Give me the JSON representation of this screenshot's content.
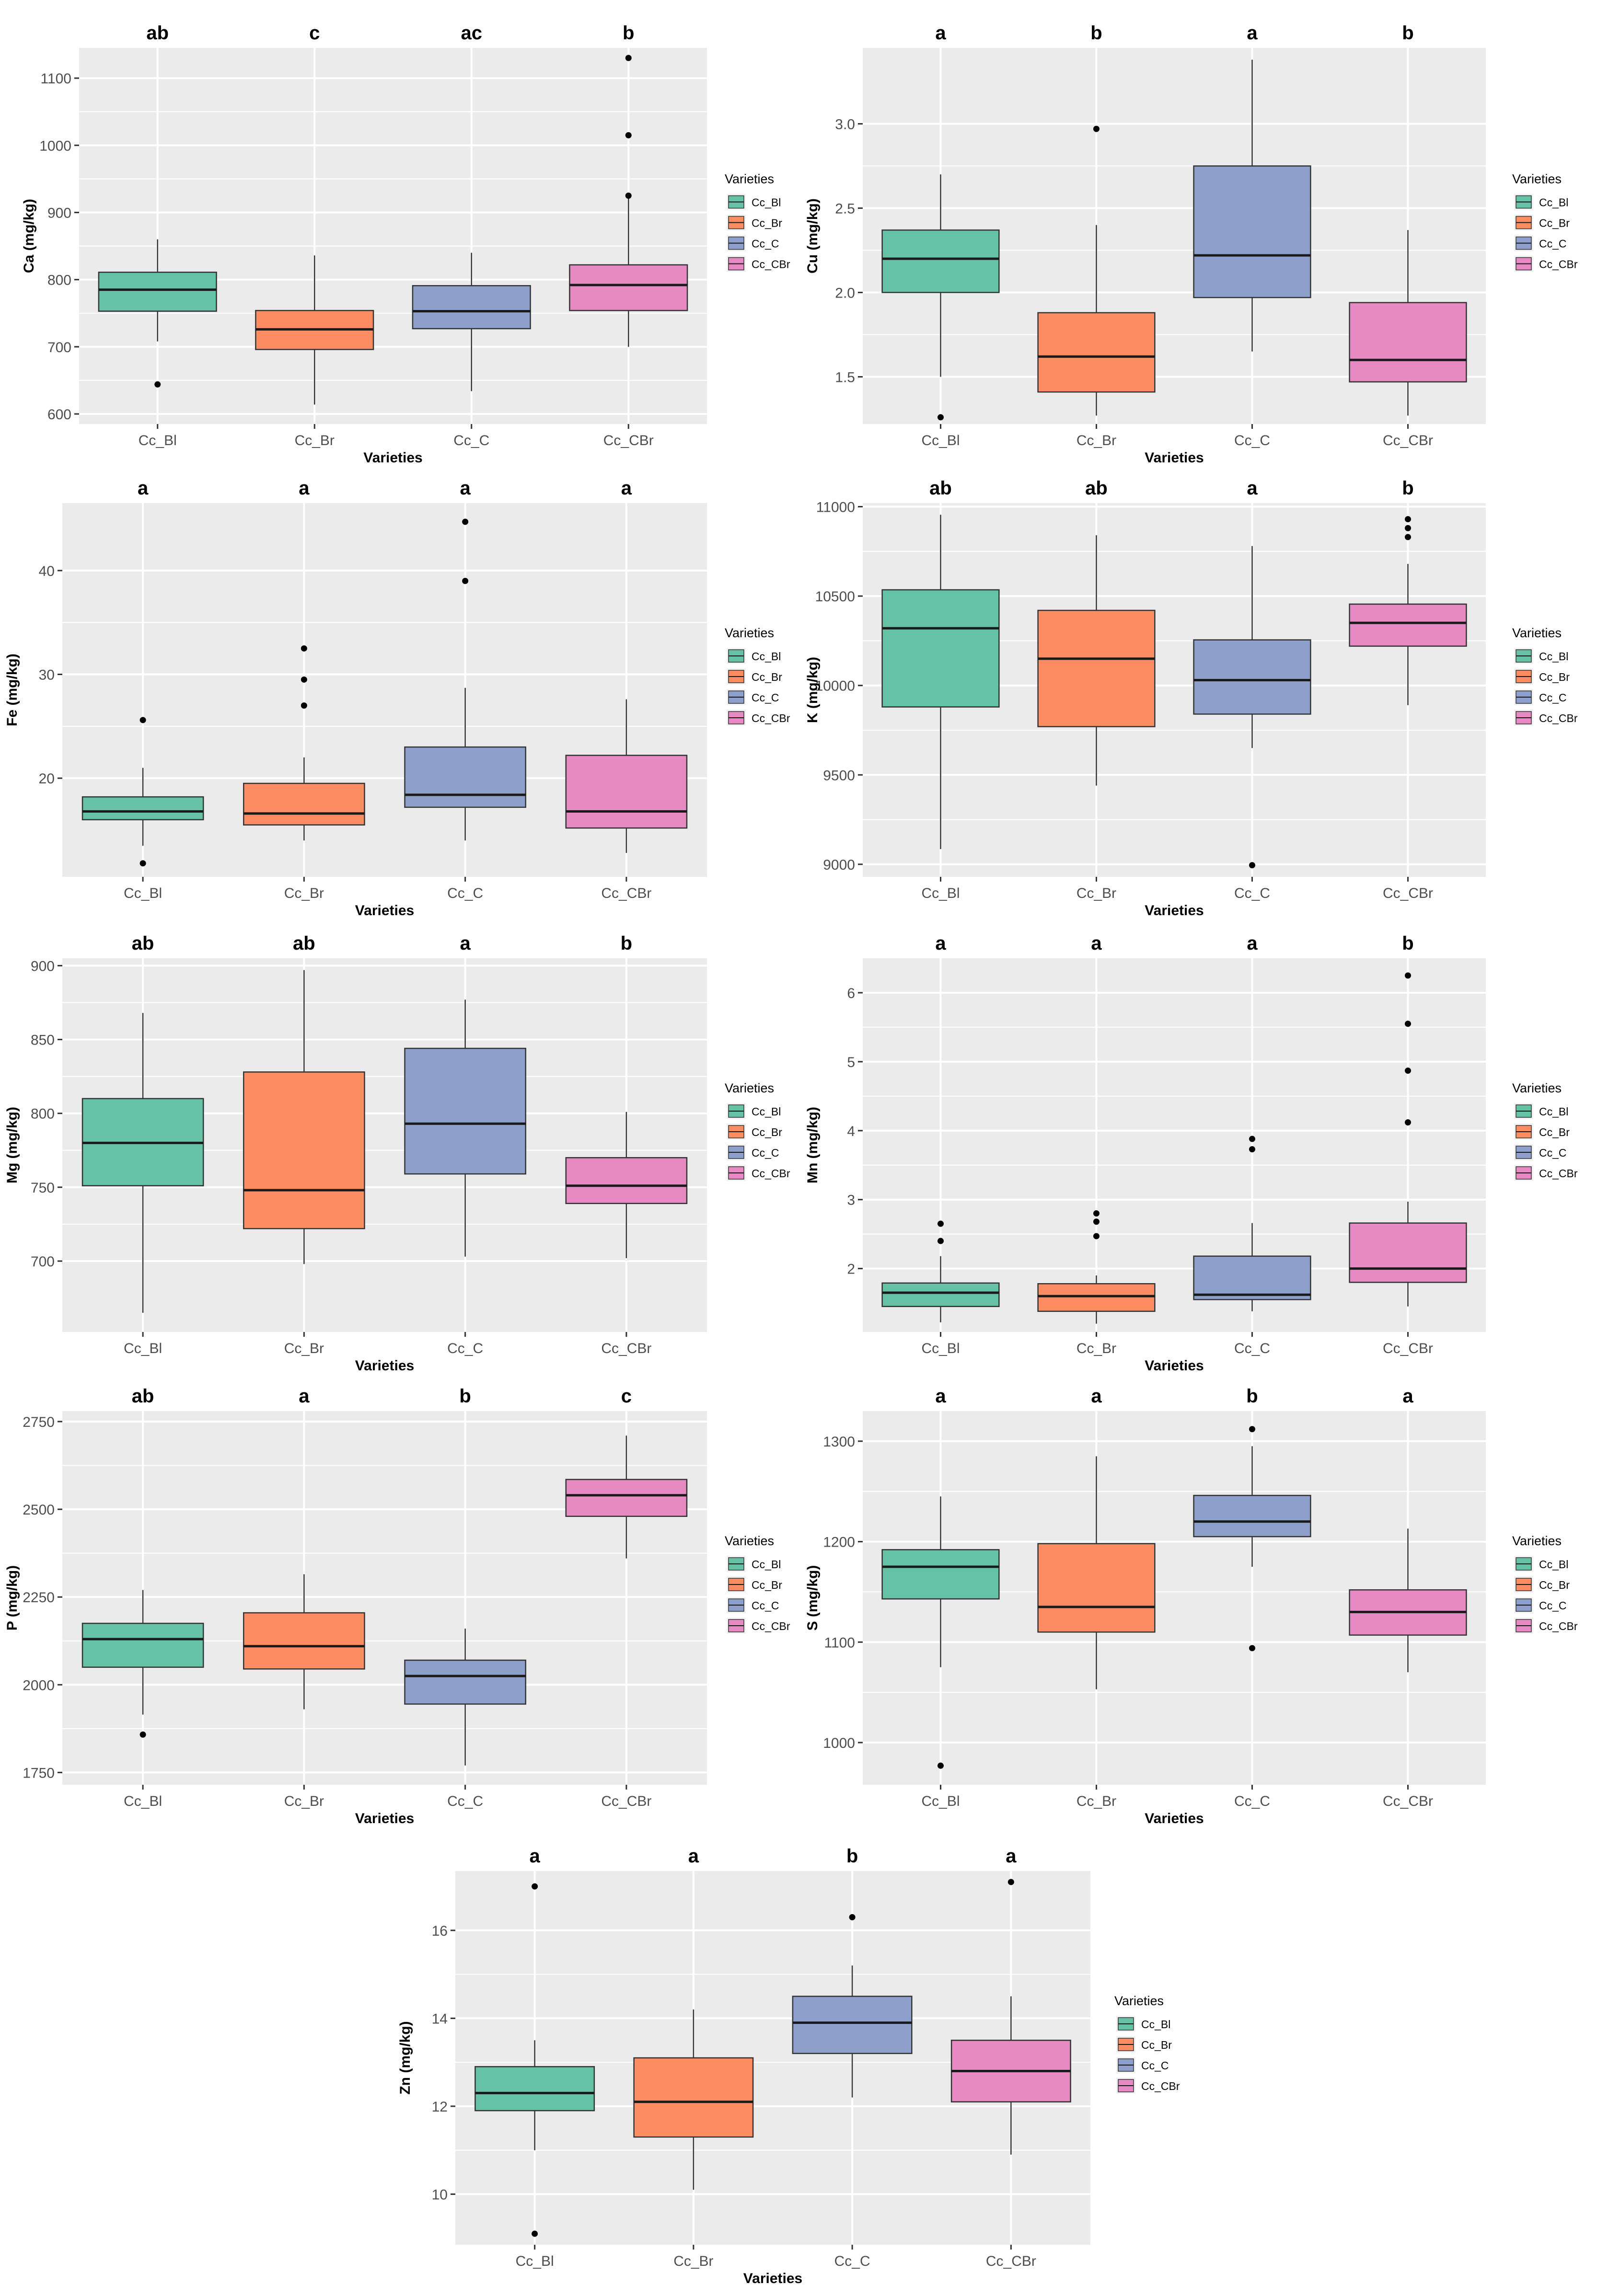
{
  "categories": [
    "Cc_Bl",
    "Cc_Br",
    "Cc_C",
    "Cc_CBr"
  ],
  "colors": [
    "#66c2a5",
    "#fc8d62",
    "#8da0cb",
    "#e78ac3"
  ],
  "legend_title": "Varieties",
  "xlabel": "Varieties",
  "chart_data": [
    {
      "type": "boxplot",
      "title": "Ca",
      "ylabel": "Ca (mg/kg)",
      "ylim": [
        585,
        1145
      ],
      "yticks": [
        600,
        700,
        800,
        900,
        1000,
        1100
      ],
      "letters": [
        "ab",
        "c",
        "ac",
        "b"
      ],
      "series": [
        {
          "name": "Cc_Bl",
          "lower": 708,
          "q1": 753,
          "median": 785,
          "q3": 811,
          "upper": 860,
          "outliers": [
            644
          ]
        },
        {
          "name": "Cc_Br",
          "lower": 614,
          "q1": 696,
          "median": 726,
          "q3": 754,
          "upper": 836,
          "outliers": []
        },
        {
          "name": "Cc_C",
          "lower": 634,
          "q1": 727,
          "median": 753,
          "q3": 791,
          "upper": 840,
          "outliers": []
        },
        {
          "name": "Cc_CBr",
          "lower": 700,
          "q1": 754,
          "median": 792,
          "q3": 822,
          "upper": 922,
          "outliers": [
            925,
            1015,
            1130
          ]
        }
      ]
    },
    {
      "type": "boxplot",
      "title": "Cu",
      "ylabel": "Cu (mg/kg)",
      "ylim": [
        1.22,
        3.45
      ],
      "yticks": [
        1.5,
        2.0,
        2.5,
        3.0
      ],
      "letters": [
        "a",
        "b",
        "a",
        "b"
      ],
      "series": [
        {
          "name": "Cc_Bl",
          "lower": 1.5,
          "q1": 2.0,
          "median": 2.2,
          "q3": 2.37,
          "upper": 2.7,
          "outliers": [
            1.26
          ]
        },
        {
          "name": "Cc_Br",
          "lower": 1.27,
          "q1": 1.41,
          "median": 1.62,
          "q3": 1.88,
          "upper": 2.4,
          "outliers": [
            2.97
          ]
        },
        {
          "name": "Cc_C",
          "lower": 1.65,
          "q1": 1.97,
          "median": 2.22,
          "q3": 2.75,
          "upper": 3.38,
          "outliers": []
        },
        {
          "name": "Cc_CBr",
          "lower": 1.27,
          "q1": 1.47,
          "median": 1.6,
          "q3": 1.94,
          "upper": 2.37,
          "outliers": []
        }
      ]
    },
    {
      "type": "boxplot",
      "title": "Fe",
      "ylabel": "Fe (mg/kg)",
      "ylim": [
        10.5,
        46.5
      ],
      "yticks": [
        20,
        30,
        40
      ],
      "letters": [
        "a",
        "a",
        "a",
        "a"
      ],
      "series": [
        {
          "name": "Cc_Bl",
          "lower": 13.5,
          "q1": 16.0,
          "median": 16.8,
          "q3": 18.2,
          "upper": 21.0,
          "outliers": [
            25.6,
            11.8
          ]
        },
        {
          "name": "Cc_Br",
          "lower": 14.0,
          "q1": 15.5,
          "median": 16.6,
          "q3": 19.5,
          "upper": 22.0,
          "outliers": [
            27.0,
            29.5,
            32.5
          ]
        },
        {
          "name": "Cc_C",
          "lower": 14.0,
          "q1": 17.2,
          "median": 18.4,
          "q3": 23.0,
          "upper": 28.7,
          "outliers": [
            39.0,
            44.7
          ]
        },
        {
          "name": "Cc_CBr",
          "lower": 12.8,
          "q1": 15.2,
          "median": 16.8,
          "q3": 22.2,
          "upper": 27.6,
          "outliers": []
        }
      ]
    },
    {
      "type": "boxplot",
      "title": "K",
      "ylabel": "K (mg/kg)",
      "ylim": [
        8930,
        11020
      ],
      "yticks": [
        9000,
        9500,
        10000,
        10500,
        11000
      ],
      "letters": [
        "ab",
        "ab",
        "a",
        "b"
      ],
      "series": [
        {
          "name": "Cc_Bl",
          "lower": 9085,
          "q1": 9880,
          "median": 10320,
          "q3": 10535,
          "upper": 10955,
          "outliers": []
        },
        {
          "name": "Cc_Br",
          "lower": 9440,
          "q1": 9770,
          "median": 10150,
          "q3": 10420,
          "upper": 10840,
          "outliers": []
        },
        {
          "name": "Cc_C",
          "lower": 9650,
          "q1": 9840,
          "median": 10030,
          "q3": 10255,
          "upper": 10780,
          "outliers": [
            8995
          ]
        },
        {
          "name": "Cc_CBr",
          "lower": 9890,
          "q1": 10220,
          "median": 10350,
          "q3": 10455,
          "upper": 10680,
          "outliers": [
            10830,
            10880,
            10930
          ]
        }
      ]
    },
    {
      "type": "boxplot",
      "title": "Mg",
      "ylabel": "Mg (mg/kg)",
      "ylim": [
        652,
        905
      ],
      "yticks": [
        700,
        750,
        800,
        850,
        900
      ],
      "letters": [
        "ab",
        "ab",
        "a",
        "b"
      ],
      "series": [
        {
          "name": "Cc_Bl",
          "lower": 665,
          "q1": 751,
          "median": 780,
          "q3": 810,
          "upper": 868,
          "outliers": []
        },
        {
          "name": "Cc_Br",
          "lower": 698,
          "q1": 722,
          "median": 748,
          "q3": 828,
          "upper": 897,
          "outliers": []
        },
        {
          "name": "Cc_C",
          "lower": 703,
          "q1": 759,
          "median": 793,
          "q3": 844,
          "upper": 877,
          "outliers": []
        },
        {
          "name": "Cc_CBr",
          "lower": 702,
          "q1": 739,
          "median": 751,
          "q3": 770,
          "upper": 801,
          "outliers": []
        }
      ]
    },
    {
      "type": "boxplot",
      "title": "Mn",
      "ylabel": "Mn (mg/kg)",
      "ylim": [
        1.08,
        6.5
      ],
      "yticks": [
        2,
        3,
        4,
        5,
        6
      ],
      "letters": [
        "a",
        "a",
        "a",
        "b"
      ],
      "series": [
        {
          "name": "Cc_Bl",
          "lower": 1.22,
          "q1": 1.45,
          "median": 1.65,
          "q3": 1.79,
          "upper": 2.18,
          "outliers": [
            2.4,
            2.65
          ]
        },
        {
          "name": "Cc_Br",
          "lower": 1.2,
          "q1": 1.38,
          "median": 1.6,
          "q3": 1.78,
          "upper": 1.9,
          "outliers": [
            2.47,
            2.68,
            2.8
          ]
        },
        {
          "name": "Cc_C",
          "lower": 1.38,
          "q1": 1.55,
          "median": 1.62,
          "q3": 2.18,
          "upper": 2.66,
          "outliers": [
            3.73,
            3.88
          ]
        },
        {
          "name": "Cc_CBr",
          "lower": 1.45,
          "q1": 1.8,
          "median": 2.0,
          "q3": 2.66,
          "upper": 2.97,
          "outliers": [
            4.12,
            4.87,
            5.55,
            6.25
          ]
        }
      ]
    },
    {
      "type": "boxplot",
      "title": "P",
      "ylabel": "P (mg/kg)",
      "ylim": [
        1715,
        2780
      ],
      "yticks": [
        1750,
        2000,
        2250,
        2500,
        2750
      ],
      "letters": [
        "ab",
        "a",
        "b",
        "c"
      ],
      "series": [
        {
          "name": "Cc_Bl",
          "lower": 1915,
          "q1": 2050,
          "median": 2130,
          "q3": 2175,
          "upper": 2270,
          "outliers": [
            1858
          ]
        },
        {
          "name": "Cc_Br",
          "lower": 1930,
          "q1": 2045,
          "median": 2110,
          "q3": 2205,
          "upper": 2315,
          "outliers": []
        },
        {
          "name": "Cc_C",
          "lower": 1770,
          "q1": 1945,
          "median": 2025,
          "q3": 2070,
          "upper": 2160,
          "outliers": []
        },
        {
          "name": "Cc_CBr",
          "lower": 2360,
          "q1": 2480,
          "median": 2540,
          "q3": 2585,
          "upper": 2710,
          "outliers": []
        }
      ]
    },
    {
      "type": "boxplot",
      "title": "S",
      "ylabel": "S (mg/kg)",
      "ylim": [
        958,
        1330
      ],
      "yticks": [
        1000,
        1100,
        1200,
        1300
      ],
      "letters": [
        "a",
        "a",
        "b",
        "a"
      ],
      "series": [
        {
          "name": "Cc_Bl",
          "lower": 1075,
          "q1": 1143,
          "median": 1175,
          "q3": 1192,
          "upper": 1245,
          "outliers": [
            977
          ]
        },
        {
          "name": "Cc_Br",
          "lower": 1053,
          "q1": 1110,
          "median": 1135,
          "q3": 1198,
          "upper": 1285,
          "outliers": []
        },
        {
          "name": "Cc_C",
          "lower": 1175,
          "q1": 1205,
          "median": 1220,
          "q3": 1246,
          "upper": 1295,
          "outliers": [
            1312,
            1094
          ]
        },
        {
          "name": "Cc_CBr",
          "lower": 1070,
          "q1": 1107,
          "median": 1130,
          "q3": 1152,
          "upper": 1213,
          "outliers": []
        }
      ]
    },
    {
      "type": "boxplot",
      "title": "Zn",
      "ylabel": "Zn (mg/kg)",
      "ylim": [
        8.85,
        17.35
      ],
      "yticks": [
        10,
        12,
        14,
        16
      ],
      "letters": [
        "a",
        "a",
        "b",
        "a"
      ],
      "series": [
        {
          "name": "Cc_Bl",
          "lower": 11.0,
          "q1": 11.9,
          "median": 12.3,
          "q3": 12.9,
          "upper": 13.5,
          "outliers": [
            17.0,
            9.1
          ]
        },
        {
          "name": "Cc_Br",
          "lower": 10.1,
          "q1": 11.3,
          "median": 12.1,
          "q3": 13.1,
          "upper": 14.2,
          "outliers": []
        },
        {
          "name": "Cc_C",
          "lower": 12.2,
          "q1": 13.2,
          "median": 13.9,
          "q3": 14.5,
          "upper": 15.2,
          "outliers": [
            16.3
          ]
        },
        {
          "name": "Cc_CBr",
          "lower": 10.9,
          "q1": 12.1,
          "median": 12.8,
          "q3": 13.5,
          "upper": 14.5,
          "outliers": [
            17.1
          ]
        }
      ]
    }
  ]
}
